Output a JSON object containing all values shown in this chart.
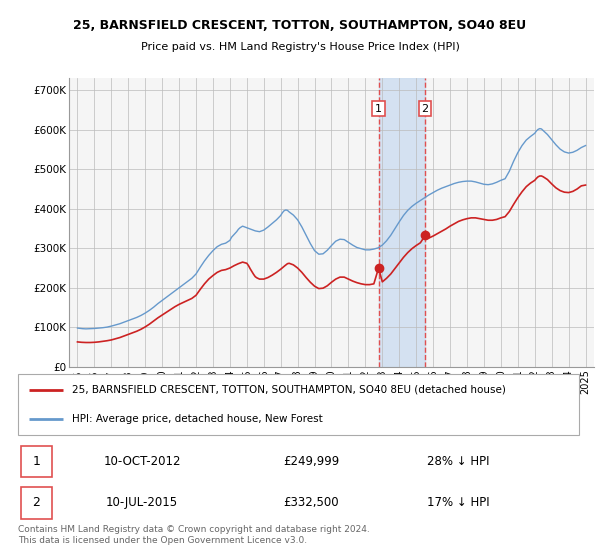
{
  "title": "25, BARNSFIELD CRESCENT, TOTTON, SOUTHAMPTON, SO40 8EU",
  "subtitle": "Price paid vs. HM Land Registry's House Price Index (HPI)",
  "legend_line1": "25, BARNSFIELD CRESCENT, TOTTON, SOUTHAMPTON, SO40 8EU (detached house)",
  "legend_line2": "HPI: Average price, detached house, New Forest",
  "table_rows": [
    {
      "num": "1",
      "date": "10-OCT-2012",
      "price": "£249,999",
      "hpi": "28% ↓ HPI"
    },
    {
      "num": "2",
      "date": "10-JUL-2015",
      "price": "£332,500",
      "hpi": "17% ↓ HPI"
    }
  ],
  "footnote": "Contains HM Land Registry data © Crown copyright and database right 2024.\nThis data is licensed under the Open Government Licence v3.0.",
  "sale1_x": 2012.78,
  "sale1_y": 249999,
  "sale2_x": 2015.53,
  "sale2_y": 332500,
  "vline1_x": 2012.78,
  "vline2_x": 2015.53,
  "shade_color": "#ccdcf0",
  "vline_color": "#e05050",
  "hpi_color": "#6699cc",
  "price_color": "#cc2222",
  "bg_color": "#f5f5f5",
  "ylim": [
    0,
    730000
  ],
  "xlim_start": 1994.5,
  "xlim_end": 2025.5,
  "yticks": [
    0,
    100000,
    200000,
    300000,
    400000,
    500000,
    600000,
    700000
  ],
  "ytick_labels": [
    "£0",
    "£100K",
    "£200K",
    "£300K",
    "£400K",
    "£500K",
    "£600K",
    "£700K"
  ],
  "xticks": [
    1995,
    1996,
    1997,
    1998,
    1999,
    2000,
    2001,
    2002,
    2003,
    2004,
    2005,
    2006,
    2007,
    2008,
    2009,
    2010,
    2011,
    2012,
    2013,
    2014,
    2015,
    2016,
    2017,
    2018,
    2019,
    2020,
    2021,
    2022,
    2023,
    2024,
    2025
  ],
  "hpi_data": [
    [
      1995.0,
      98000
    ],
    [
      1995.1,
      97500
    ],
    [
      1995.2,
      97000
    ],
    [
      1995.3,
      96500
    ],
    [
      1995.5,
      96000
    ],
    [
      1995.75,
      96500
    ],
    [
      1996.0,
      97000
    ],
    [
      1996.25,
      98000
    ],
    [
      1996.5,
      99000
    ],
    [
      1996.75,
      100500
    ],
    [
      1997.0,
      103000
    ],
    [
      1997.25,
      106000
    ],
    [
      1997.5,
      109000
    ],
    [
      1997.75,
      113000
    ],
    [
      1998.0,
      117000
    ],
    [
      1998.25,
      121000
    ],
    [
      1998.5,
      125000
    ],
    [
      1998.75,
      130000
    ],
    [
      1999.0,
      136000
    ],
    [
      1999.25,
      143000
    ],
    [
      1999.5,
      151000
    ],
    [
      1999.75,
      160000
    ],
    [
      2000.0,
      168000
    ],
    [
      2000.25,
      176000
    ],
    [
      2000.5,
      184000
    ],
    [
      2000.75,
      192000
    ],
    [
      2001.0,
      200000
    ],
    [
      2001.25,
      208000
    ],
    [
      2001.5,
      216000
    ],
    [
      2001.75,
      224000
    ],
    [
      2002.0,
      235000
    ],
    [
      2002.25,
      252000
    ],
    [
      2002.5,
      268000
    ],
    [
      2002.75,
      282000
    ],
    [
      2003.0,
      294000
    ],
    [
      2003.25,
      304000
    ],
    [
      2003.5,
      310000
    ],
    [
      2003.75,
      313000
    ],
    [
      2004.0,
      320000
    ],
    [
      2004.1,
      328000
    ],
    [
      2004.25,
      335000
    ],
    [
      2004.4,
      342000
    ],
    [
      2004.5,
      348000
    ],
    [
      2004.6,
      352000
    ],
    [
      2004.75,
      356000
    ],
    [
      2005.0,
      352000
    ],
    [
      2005.25,
      348000
    ],
    [
      2005.5,
      344000
    ],
    [
      2005.75,
      342000
    ],
    [
      2006.0,
      346000
    ],
    [
      2006.25,
      354000
    ],
    [
      2006.5,
      363000
    ],
    [
      2006.75,
      372000
    ],
    [
      2007.0,
      383000
    ],
    [
      2007.1,
      390000
    ],
    [
      2007.2,
      395000
    ],
    [
      2007.3,
      397000
    ],
    [
      2007.4,
      396000
    ],
    [
      2007.5,
      392000
    ],
    [
      2007.75,
      384000
    ],
    [
      2008.0,
      372000
    ],
    [
      2008.25,
      354000
    ],
    [
      2008.5,
      333000
    ],
    [
      2008.75,
      312000
    ],
    [
      2009.0,
      294000
    ],
    [
      2009.25,
      285000
    ],
    [
      2009.5,
      286000
    ],
    [
      2009.75,
      295000
    ],
    [
      2010.0,
      307000
    ],
    [
      2010.25,
      318000
    ],
    [
      2010.5,
      323000
    ],
    [
      2010.75,
      322000
    ],
    [
      2011.0,
      315000
    ],
    [
      2011.25,
      308000
    ],
    [
      2011.5,
      302000
    ],
    [
      2011.75,
      299000
    ],
    [
      2012.0,
      296000
    ],
    [
      2012.25,
      296000
    ],
    [
      2012.5,
      298000
    ],
    [
      2012.75,
      301000
    ],
    [
      2013.0,
      308000
    ],
    [
      2013.25,
      319000
    ],
    [
      2013.5,
      333000
    ],
    [
      2013.75,
      350000
    ],
    [
      2014.0,
      367000
    ],
    [
      2014.25,
      383000
    ],
    [
      2014.5,
      396000
    ],
    [
      2014.75,
      406000
    ],
    [
      2015.0,
      414000
    ],
    [
      2015.25,
      421000
    ],
    [
      2015.5,
      428000
    ],
    [
      2015.75,
      435000
    ],
    [
      2016.0,
      441000
    ],
    [
      2016.25,
      447000
    ],
    [
      2016.5,
      452000
    ],
    [
      2016.75,
      456000
    ],
    [
      2017.0,
      460000
    ],
    [
      2017.25,
      464000
    ],
    [
      2017.5,
      467000
    ],
    [
      2017.75,
      469000
    ],
    [
      2018.0,
      470000
    ],
    [
      2018.25,
      470000
    ],
    [
      2018.5,
      468000
    ],
    [
      2018.75,
      465000
    ],
    [
      2019.0,
      462000
    ],
    [
      2019.25,
      461000
    ],
    [
      2019.5,
      463000
    ],
    [
      2019.75,
      467000
    ],
    [
      2020.0,
      472000
    ],
    [
      2020.25,
      476000
    ],
    [
      2020.5,
      495000
    ],
    [
      2020.75,
      520000
    ],
    [
      2021.0,
      542000
    ],
    [
      2021.25,
      560000
    ],
    [
      2021.5,
      574000
    ],
    [
      2021.75,
      583000
    ],
    [
      2022.0,
      591000
    ],
    [
      2022.1,
      597000
    ],
    [
      2022.2,
      601000
    ],
    [
      2022.3,
      603000
    ],
    [
      2022.4,
      602000
    ],
    [
      2022.5,
      598000
    ],
    [
      2022.75,
      588000
    ],
    [
      2023.0,
      575000
    ],
    [
      2023.25,
      562000
    ],
    [
      2023.5,
      551000
    ],
    [
      2023.75,
      544000
    ],
    [
      2024.0,
      541000
    ],
    [
      2024.25,
      543000
    ],
    [
      2024.5,
      548000
    ],
    [
      2024.75,
      555000
    ],
    [
      2025.0,
      560000
    ]
  ],
  "price_data": [
    [
      1995.0,
      63000
    ],
    [
      1995.25,
      62000
    ],
    [
      1995.5,
      61500
    ],
    [
      1995.75,
      61500
    ],
    [
      1996.0,
      62000
    ],
    [
      1996.25,
      63000
    ],
    [
      1996.5,
      64500
    ],
    [
      1996.75,
      66000
    ],
    [
      1997.0,
      68000
    ],
    [
      1997.25,
      71000
    ],
    [
      1997.5,
      74000
    ],
    [
      1997.75,
      78000
    ],
    [
      1998.0,
      82000
    ],
    [
      1998.25,
      86000
    ],
    [
      1998.5,
      90000
    ],
    [
      1998.75,
      95000
    ],
    [
      1999.0,
      101000
    ],
    [
      1999.25,
      108000
    ],
    [
      1999.5,
      116000
    ],
    [
      1999.75,
      124000
    ],
    [
      2000.0,
      131000
    ],
    [
      2000.25,
      138000
    ],
    [
      2000.5,
      145000
    ],
    [
      2000.75,
      152000
    ],
    [
      2001.0,
      158000
    ],
    [
      2001.25,
      163000
    ],
    [
      2001.5,
      168000
    ],
    [
      2001.75,
      173000
    ],
    [
      2002.0,
      181000
    ],
    [
      2002.25,
      196000
    ],
    [
      2002.5,
      210000
    ],
    [
      2002.75,
      222000
    ],
    [
      2003.0,
      231000
    ],
    [
      2003.25,
      239000
    ],
    [
      2003.5,
      244000
    ],
    [
      2003.75,
      246000
    ],
    [
      2004.0,
      250000
    ],
    [
      2004.25,
      256000
    ],
    [
      2004.5,
      261000
    ],
    [
      2004.75,
      265000
    ],
    [
      2005.0,
      262000
    ],
    [
      2005.1,
      256000
    ],
    [
      2005.2,
      248000
    ],
    [
      2005.3,
      241000
    ],
    [
      2005.4,
      234000
    ],
    [
      2005.5,
      228000
    ],
    [
      2005.6,
      225000
    ],
    [
      2005.75,
      222000
    ],
    [
      2006.0,
      222000
    ],
    [
      2006.25,
      226000
    ],
    [
      2006.5,
      232000
    ],
    [
      2006.75,
      239000
    ],
    [
      2007.0,
      247000
    ],
    [
      2007.25,
      256000
    ],
    [
      2007.4,
      261000
    ],
    [
      2007.5,
      262000
    ],
    [
      2007.75,
      258000
    ],
    [
      2008.0,
      250000
    ],
    [
      2008.25,
      239000
    ],
    [
      2008.5,
      226000
    ],
    [
      2008.75,
      214000
    ],
    [
      2009.0,
      204000
    ],
    [
      2009.25,
      198000
    ],
    [
      2009.5,
      199000
    ],
    [
      2009.75,
      205000
    ],
    [
      2010.0,
      214000
    ],
    [
      2010.25,
      222000
    ],
    [
      2010.5,
      227000
    ],
    [
      2010.75,
      227000
    ],
    [
      2011.0,
      222000
    ],
    [
      2011.25,
      217000
    ],
    [
      2011.5,
      213000
    ],
    [
      2011.75,
      210000
    ],
    [
      2012.0,
      208000
    ],
    [
      2012.25,
      208000
    ],
    [
      2012.5,
      210000
    ],
    [
      2012.78,
      249999
    ],
    [
      2013.0,
      215000
    ],
    [
      2013.25,
      224000
    ],
    [
      2013.5,
      235000
    ],
    [
      2013.75,
      249000
    ],
    [
      2014.0,
      263000
    ],
    [
      2014.25,
      277000
    ],
    [
      2014.5,
      289000
    ],
    [
      2014.75,
      299000
    ],
    [
      2015.0,
      307000
    ],
    [
      2015.25,
      314000
    ],
    [
      2015.53,
      332500
    ],
    [
      2015.75,
      326000
    ],
    [
      2016.0,
      331000
    ],
    [
      2016.25,
      337000
    ],
    [
      2016.5,
      343000
    ],
    [
      2016.75,
      349000
    ],
    [
      2017.0,
      356000
    ],
    [
      2017.25,
      362000
    ],
    [
      2017.5,
      368000
    ],
    [
      2017.75,
      372000
    ],
    [
      2018.0,
      375000
    ],
    [
      2018.25,
      377000
    ],
    [
      2018.5,
      377000
    ],
    [
      2018.75,
      375000
    ],
    [
      2019.0,
      373000
    ],
    [
      2019.25,
      371000
    ],
    [
      2019.5,
      371000
    ],
    [
      2019.75,
      373000
    ],
    [
      2020.0,
      377000
    ],
    [
      2020.25,
      380000
    ],
    [
      2020.5,
      393000
    ],
    [
      2020.75,
      411000
    ],
    [
      2021.0,
      428000
    ],
    [
      2021.25,
      443000
    ],
    [
      2021.5,
      456000
    ],
    [
      2021.75,
      465000
    ],
    [
      2022.0,
      472000
    ],
    [
      2022.1,
      477000
    ],
    [
      2022.2,
      481000
    ],
    [
      2022.3,
      483000
    ],
    [
      2022.4,
      483000
    ],
    [
      2022.5,
      481000
    ],
    [
      2022.75,
      474000
    ],
    [
      2023.0,
      463000
    ],
    [
      2023.25,
      453000
    ],
    [
      2023.5,
      446000
    ],
    [
      2023.75,
      442000
    ],
    [
      2024.0,
      441000
    ],
    [
      2024.25,
      444000
    ],
    [
      2024.5,
      450000
    ],
    [
      2024.75,
      458000
    ],
    [
      2025.0,
      460000
    ]
  ]
}
